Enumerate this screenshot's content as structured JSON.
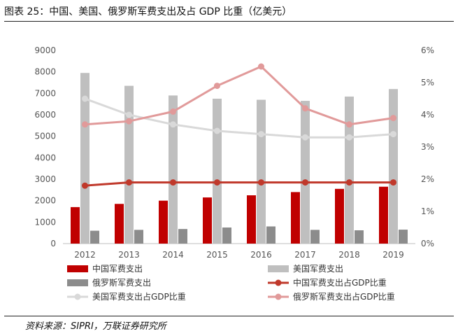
{
  "figure": {
    "title": "图表 25：中国、美国、俄罗斯军费支出及占 GDP 比重（亿美元）",
    "source": "资料来源：SIPRI，万联证券研究所"
  },
  "chart_data": {
    "type": "bar",
    "categories": [
      "2012",
      "2013",
      "2014",
      "2015",
      "2016",
      "2017",
      "2018",
      "2019"
    ],
    "y_left": {
      "min": 0,
      "max": 9000,
      "step": 1000,
      "ticks": [
        "0",
        "1000",
        "2000",
        "3000",
        "4000",
        "5000",
        "6000",
        "7000",
        "8000",
        "9000"
      ]
    },
    "y_right": {
      "min": 0,
      "max": 6,
      "step": 1,
      "ticks": [
        "0%",
        "1%",
        "2%",
        "3%",
        "4%",
        "5%",
        "6%"
      ]
    },
    "grid": false,
    "legend_position": "bottom",
    "bar_series": [
      {
        "name": "中国军费支出",
        "color": "#c00000",
        "values": [
          1700,
          1850,
          2000,
          2150,
          2250,
          2400,
          2550,
          2650
        ]
      },
      {
        "name": "美国军费支出",
        "color": "#bfbfbf",
        "values": [
          7950,
          7350,
          6900,
          6750,
          6700,
          6650,
          6850,
          7200
        ]
      },
      {
        "name": "俄罗斯军费支出",
        "color": "#8c8c8c",
        "values": [
          600,
          640,
          680,
          750,
          800,
          640,
          620,
          650
        ]
      }
    ],
    "line_series": [
      {
        "name": "中国军费支出占GDP比重",
        "color": "#c0392b",
        "values": [
          1.8,
          1.9,
          1.9,
          1.9,
          1.9,
          1.9,
          1.9,
          1.9
        ]
      },
      {
        "name": "美国军费支出占GDP比重",
        "color": "#d9d9d9",
        "values": [
          4.5,
          4.0,
          3.7,
          3.5,
          3.4,
          3.3,
          3.3,
          3.4
        ]
      },
      {
        "name": "俄罗斯军费支出占GDP比重",
        "color": "#e19a9a",
        "values": [
          3.7,
          3.8,
          4.1,
          4.9,
          5.5,
          4.2,
          3.7,
          3.9
        ]
      }
    ]
  }
}
